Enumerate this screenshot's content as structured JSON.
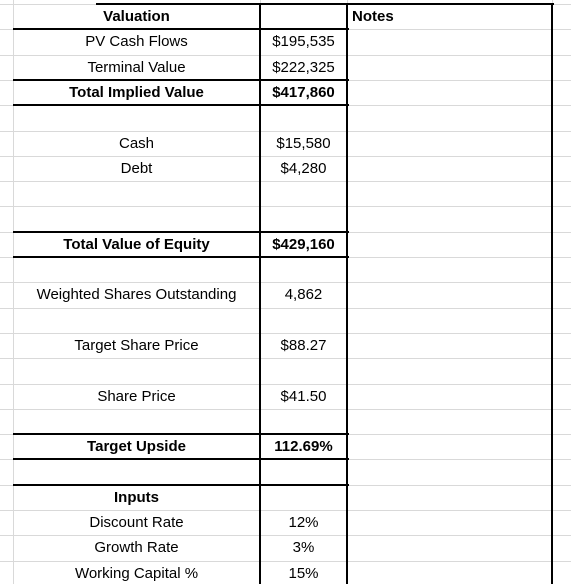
{
  "header": {
    "title": "Valuation",
    "notes": "Notes"
  },
  "rows": [
    {
      "label": "PV Cash Flows",
      "value": "$195,535"
    },
    {
      "label": "Terminal Value",
      "value": "$222,325"
    },
    {
      "label": "Total Implied Value",
      "value": "$417,860"
    },
    {},
    {
      "label": "Cash",
      "value": "$15,580"
    },
    {
      "label": "Debt",
      "value": "$4,280"
    },
    {},
    {},
    {
      "label": "Total Value of Equity",
      "value": "$429,160"
    },
    {},
    {
      "label": "Weighted Shares Outstanding",
      "value": "4,862"
    },
    {},
    {
      "label": "Target Share Price",
      "value": "$88.27"
    },
    {},
    {
      "label": "Share Price",
      "value": "$41.50"
    },
    {},
    {
      "label": "Target Upside",
      "value": "112.69%"
    },
    {},
    {
      "label": "Inputs"
    },
    {
      "label": "Discount Rate",
      "value": "12%"
    },
    {
      "label": "Growth Rate",
      "value": "3%"
    },
    {
      "label": "Working Capital %",
      "value": "15%"
    }
  ]
}
